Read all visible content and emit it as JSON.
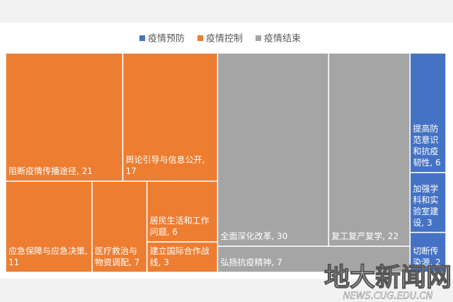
{
  "chart_data": {
    "type": "treemap",
    "series": [
      {
        "name": "疫情预防",
        "color": "#4472c4",
        "items": [
          {
            "label": "提高防范意识和抗疫韧性, 6",
            "value": 6
          },
          {
            "label": "加强学科和实验室建设, 3",
            "value": 3
          },
          {
            "label": "切断传染源, 2",
            "value": 2
          }
        ]
      },
      {
        "name": "疫情控制",
        "color": "#ed7d31",
        "items": [
          {
            "label": "阻断疫情传播途径, 21",
            "value": 21
          },
          {
            "label": "舆论引导与信息公开, 17",
            "value": 17
          },
          {
            "label": "应急保障与应急决策, 11",
            "value": 11
          },
          {
            "label": "医疗救治与物资调配, 7",
            "value": 7
          },
          {
            "label": "居民生活和工作问题, 6",
            "value": 6
          },
          {
            "label": "建立国际合作战线, 3",
            "value": 3
          }
        ]
      },
      {
        "name": "疫情结束",
        "color": "#a5a5a5",
        "items": [
          {
            "label": "全面深化改革, 30",
            "value": 30
          },
          {
            "label": "复工复产复学, 22",
            "value": 22
          },
          {
            "label": "弘扬抗疫精神, 7",
            "value": 7
          }
        ]
      }
    ]
  },
  "watermark": {
    "title": "地大新闻网",
    "subtitle": "NEWS.CUG.EDU.CN"
  }
}
